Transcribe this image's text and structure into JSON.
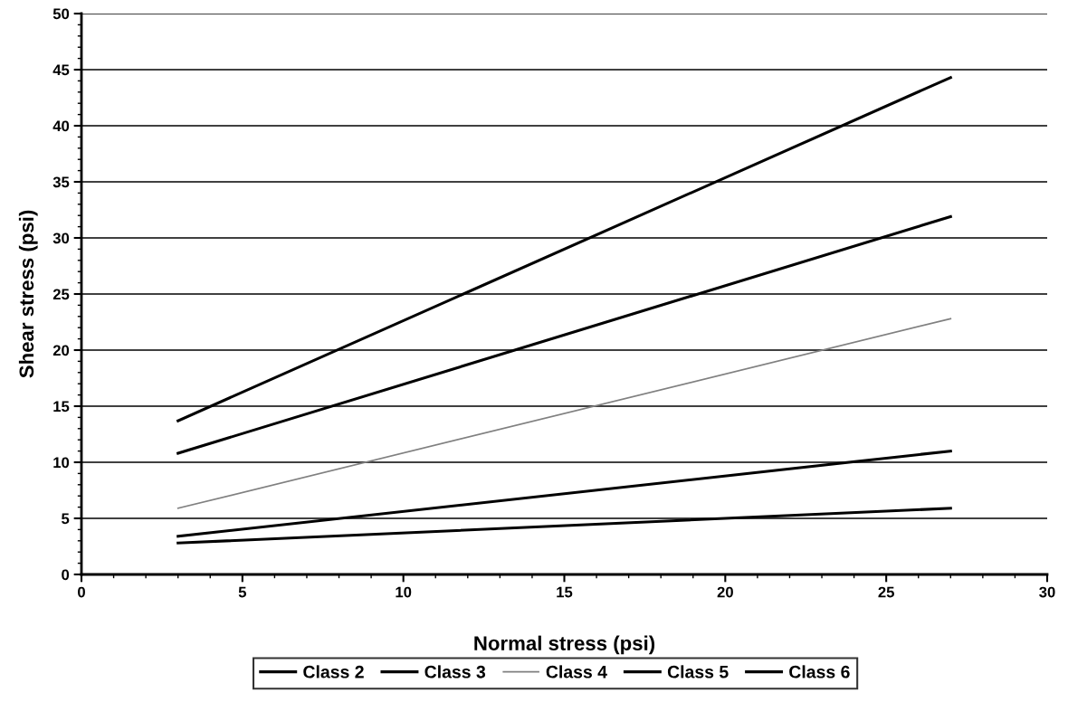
{
  "chart_data": {
    "type": "line",
    "xlabel": "Normal stress (psi)",
    "ylabel": "Shear stress (psi)",
    "x": [
      3,
      27
    ],
    "series": [
      {
        "name": "Class 2",
        "color": "#000000",
        "values": [
          2.8,
          5.9
        ]
      },
      {
        "name": "Class 3",
        "color": "#000000",
        "values": [
          3.4,
          11.0
        ]
      },
      {
        "name": "Class 4",
        "color": "#808080",
        "values": [
          5.9,
          22.8
        ]
      },
      {
        "name": "Class 5",
        "color": "#000000",
        "values": [
          10.8,
          31.9
        ]
      },
      {
        "name": "Class 6",
        "color": "#000000",
        "values": [
          13.7,
          44.3
        ]
      }
    ],
    "xlim": [
      0,
      30
    ],
    "xticks": [
      0,
      5,
      10,
      15,
      20,
      25,
      30
    ],
    "ylim": [
      0,
      50
    ],
    "yticks": [
      0,
      5,
      10,
      15,
      20,
      25,
      30,
      35,
      40,
      45,
      50
    ],
    "grid": "y",
    "legend": "bottom",
    "marker": "none",
    "line_style": "solid"
  }
}
